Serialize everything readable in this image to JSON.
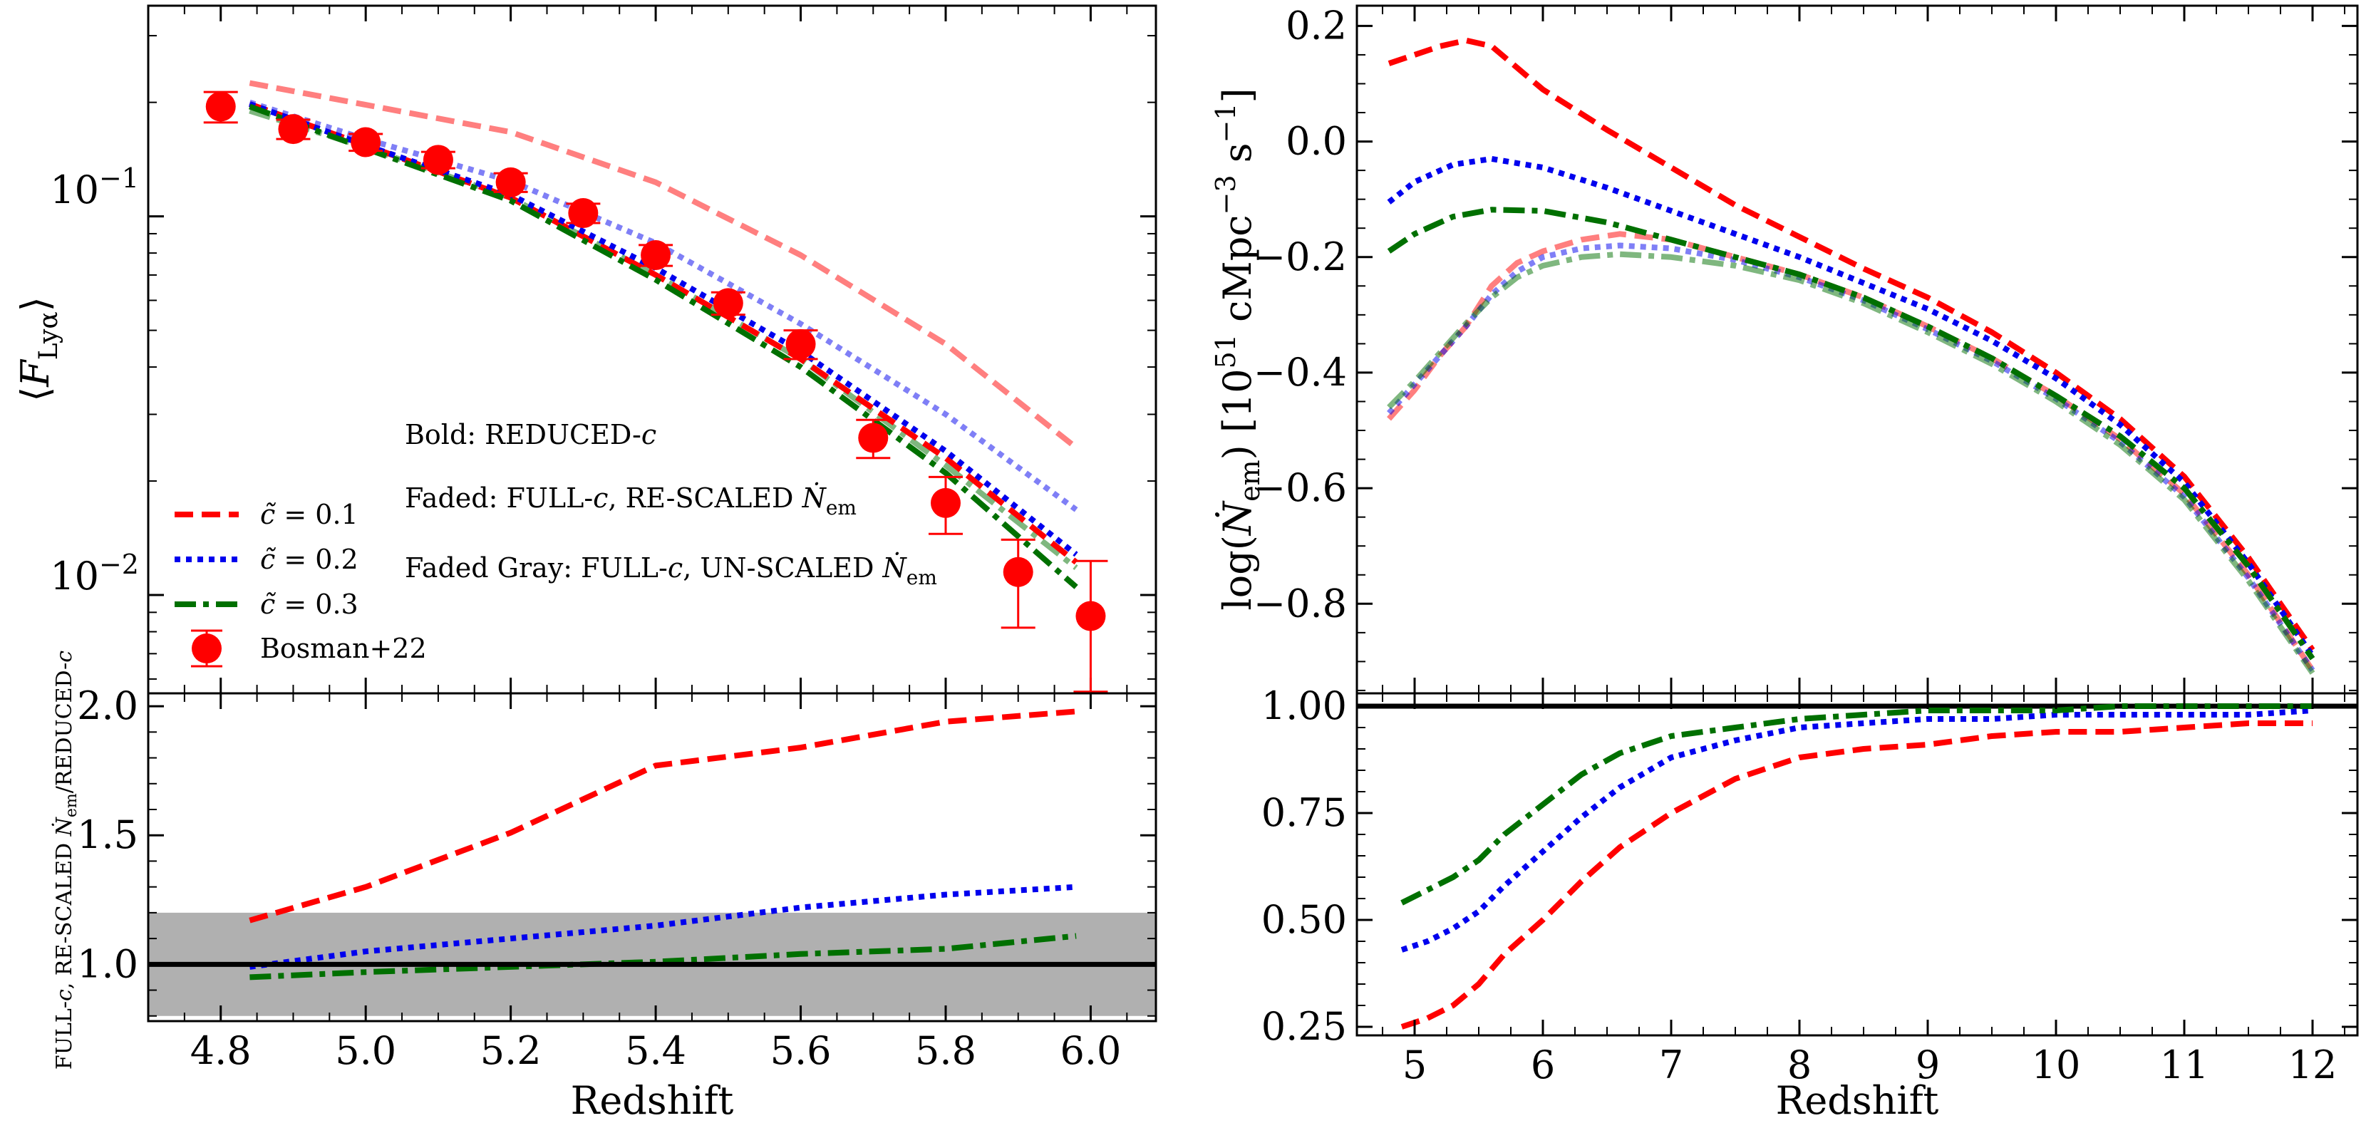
{
  "chart_data": [
    {
      "id": "top-left",
      "type": "line",
      "ylabel": "⟨F_Lyα⟩",
      "yscale": "log",
      "ylim": [
        0.0055,
        0.36
      ],
      "xlim": [
        4.7,
        6.09
      ],
      "y_tick_labels": [
        "10^-1",
        "10^-2"
      ],
      "series": [
        {
          "name": "c̃ = 0.1",
          "style": "dashed",
          "color": "#ff0000",
          "faded": false,
          "x": [
            4.84,
            5.0,
            5.2,
            5.4,
            5.6,
            5.8,
            5.98
          ],
          "y": [
            0.198,
            0.154,
            0.112,
            0.07,
            0.042,
            0.023,
            0.0122
          ]
        },
        {
          "name": "c̃ = 0.2",
          "style": "dotted",
          "color": "#0000ee",
          "faded": false,
          "x": [
            4.84,
            5.0,
            5.2,
            5.4,
            5.6,
            5.8,
            5.98
          ],
          "y": [
            0.198,
            0.154,
            0.114,
            0.073,
            0.044,
            0.024,
            0.0128
          ]
        },
        {
          "name": "c̃ = 0.3",
          "style": "dashdot",
          "color": "#007000",
          "faded": false,
          "x": [
            4.84,
            5.0,
            5.2,
            5.4,
            5.6,
            5.8,
            5.98
          ],
          "y": [
            0.195,
            0.151,
            0.11,
            0.068,
            0.04,
            0.021,
            0.0105
          ]
        },
        {
          "name": "",
          "style": "dashed",
          "color": "#ff0000",
          "faded": true,
          "x": [
            4.84,
            5.0,
            5.2,
            5.4,
            5.6,
            5.8,
            5.98
          ],
          "y": [
            0.225,
            0.197,
            0.167,
            0.123,
            0.079,
            0.046,
            0.0245
          ]
        },
        {
          "name": "",
          "style": "dotted",
          "color": "#0000ee",
          "faded": true,
          "x": [
            4.84,
            5.0,
            5.2,
            5.4,
            5.6,
            5.8,
            5.98
          ],
          "y": [
            0.2,
            0.16,
            0.124,
            0.085,
            0.052,
            0.03,
            0.0168
          ]
        },
        {
          "name": "",
          "style": "dashdot",
          "color": "#007000",
          "faded": true,
          "x": [
            4.84,
            5.0,
            5.2,
            5.4,
            5.6,
            5.8,
            5.98
          ],
          "y": [
            0.19,
            0.152,
            0.112,
            0.07,
            0.042,
            0.022,
            0.0118
          ]
        }
      ],
      "points": {
        "name": "Bosman+22",
        "color": "#ff0000",
        "x": [
          4.8,
          4.9,
          5.0,
          5.1,
          5.2,
          5.3,
          5.4,
          5.5,
          5.6,
          5.7,
          5.8,
          5.9,
          6.0
        ],
        "y": [
          0.195,
          0.17,
          0.157,
          0.141,
          0.123,
          0.102,
          0.079,
          0.059,
          0.046,
          0.026,
          0.0175,
          0.0115,
          0.0088
        ],
        "err_lo": [
          0.018,
          0.01,
          0.008,
          0.007,
          0.007,
          0.006,
          0.005,
          0.004,
          0.004,
          0.003,
          0.003,
          0.0033,
          0.0038
        ],
        "err_hi": [
          0.018,
          0.01,
          0.008,
          0.007,
          0.007,
          0.006,
          0.005,
          0.004,
          0.004,
          0.003,
          0.003,
          0.0025,
          0.0035
        ]
      },
      "annotations": [
        "Bold: REDUCED-c",
        "Faded: FULL-c, RE-SCALED Ṅ_em",
        "Faded Gray: FULL-c, UN-SCALED Ṅ_em"
      ],
      "legend_placement": "lower-left"
    },
    {
      "id": "bottom-left",
      "type": "line",
      "xlabel": "Redshift",
      "ylabel": "FULL-c, RE-SCALED Ṅ_em/REDUCED-c",
      "xlim": [
        4.7,
        6.09
      ],
      "ylim": [
        0.78,
        2.05
      ],
      "x_ticks": [
        4.8,
        5.0,
        5.2,
        5.4,
        5.6,
        5.8,
        6.0
      ],
      "x_tick_labels": [
        "4.8",
        "5.0",
        "5.2",
        "5.4",
        "5.6",
        "5.8",
        "6.0"
      ],
      "y_ticks": [
        1.0,
        1.5,
        2.0
      ],
      "y_tick_labels": [
        "1.0",
        "1.5",
        "2.0"
      ],
      "band": [
        0.8,
        1.2
      ],
      "reference_line": 1.0,
      "series": [
        {
          "name": "c̃ = 0.1",
          "style": "dashed",
          "color": "#ff0000",
          "x": [
            4.84,
            5.0,
            5.2,
            5.3,
            5.4,
            5.6,
            5.8,
            5.98
          ],
          "y": [
            1.17,
            1.3,
            1.51,
            1.64,
            1.77,
            1.84,
            1.94,
            1.98
          ]
        },
        {
          "name": "c̃ = 0.2",
          "style": "dotted",
          "color": "#0000ee",
          "x": [
            4.84,
            5.0,
            5.2,
            5.4,
            5.6,
            5.8,
            5.98
          ],
          "y": [
            0.99,
            1.05,
            1.1,
            1.15,
            1.22,
            1.27,
            1.3
          ]
        },
        {
          "name": "c̃ = 0.3",
          "style": "dashdot",
          "color": "#007000",
          "x": [
            4.84,
            5.0,
            5.2,
            5.4,
            5.6,
            5.8,
            5.98
          ],
          "y": [
            0.95,
            0.97,
            0.99,
            1.01,
            1.04,
            1.06,
            1.11
          ]
        }
      ]
    },
    {
      "id": "top-right",
      "type": "line",
      "ylabel": "log(Ṅ_em) [10^51 cMpc^-3 s^-1]",
      "xlim": [
        4.55,
        12.35
      ],
      "ylim": [
        -0.955,
        0.235
      ],
      "y_ticks": [
        0.2,
        0.0,
        -0.2,
        -0.4,
        -0.6,
        -0.8
      ],
      "y_tick_labels": [
        "0.2",
        "0.0",
        "−0.2",
        "−0.4",
        "−0.6",
        "−0.8"
      ],
      "series": [
        {
          "name": "c̃ = 0.1",
          "style": "dashed",
          "color": "#ff0000",
          "faded": false,
          "x": [
            4.8,
            5.0,
            5.2,
            5.4,
            5.6,
            6.0,
            6.5,
            7.0,
            7.5,
            8.0,
            8.5,
            9.0,
            9.5,
            10.0,
            10.5,
            11.0,
            11.5,
            12.0
          ],
          "y": [
            0.135,
            0.15,
            0.165,
            0.175,
            0.165,
            0.09,
            0.02,
            -0.045,
            -0.11,
            -0.165,
            -0.22,
            -0.27,
            -0.33,
            -0.4,
            -0.48,
            -0.58,
            -0.72,
            -0.88
          ]
        },
        {
          "name": "c̃ = 0.2",
          "style": "dotted",
          "color": "#0000ee",
          "faded": false,
          "x": [
            4.8,
            5.0,
            5.3,
            5.6,
            6.0,
            6.5,
            7.0,
            7.5,
            8.0,
            8.5,
            9.0,
            9.5,
            10.0,
            10.5,
            11.0,
            11.5,
            12.0
          ],
          "y": [
            -0.105,
            -0.07,
            -0.04,
            -0.03,
            -0.045,
            -0.08,
            -0.12,
            -0.16,
            -0.2,
            -0.245,
            -0.29,
            -0.345,
            -0.41,
            -0.49,
            -0.59,
            -0.73,
            -0.89
          ]
        },
        {
          "name": "c̃ = 0.3",
          "style": "dashdot",
          "color": "#007000",
          "faded": false,
          "x": [
            4.8,
            5.0,
            5.3,
            5.6,
            6.0,
            6.5,
            7.0,
            7.5,
            8.0,
            8.5,
            9.0,
            9.5,
            10.0,
            10.5,
            11.0,
            11.5,
            12.0
          ],
          "y": [
            -0.19,
            -0.16,
            -0.13,
            -0.118,
            -0.12,
            -0.14,
            -0.17,
            -0.2,
            -0.23,
            -0.27,
            -0.32,
            -0.375,
            -0.44,
            -0.51,
            -0.6,
            -0.735,
            -0.895
          ]
        },
        {
          "name": "",
          "style": "dashed",
          "color": "#ff0000",
          "faded": true,
          "x": [
            4.8,
            5.0,
            5.2,
            5.4,
            5.6,
            5.8,
            6.0,
            6.3,
            6.6,
            7.0,
            7.5,
            8.0,
            8.5,
            9.0,
            9.5,
            10.0,
            10.5,
            11.0,
            11.5,
            12.0
          ],
          "y": [
            -0.48,
            -0.43,
            -0.37,
            -0.32,
            -0.25,
            -0.21,
            -0.19,
            -0.17,
            -0.16,
            -0.17,
            -0.2,
            -0.23,
            -0.27,
            -0.32,
            -0.375,
            -0.44,
            -0.515,
            -0.61,
            -0.75,
            -0.915
          ]
        },
        {
          "name": "",
          "style": "dotted",
          "color": "#0000ee",
          "faded": true,
          "x": [
            4.8,
            5.0,
            5.2,
            5.4,
            5.6,
            5.8,
            6.0,
            6.3,
            6.6,
            7.0,
            7.5,
            8.0,
            8.5,
            9.0,
            9.5,
            10.0,
            10.5,
            11.0,
            11.5,
            12.0
          ],
          "y": [
            -0.47,
            -0.42,
            -0.37,
            -0.32,
            -0.265,
            -0.225,
            -0.2,
            -0.185,
            -0.18,
            -0.185,
            -0.205,
            -0.235,
            -0.275,
            -0.325,
            -0.38,
            -0.445,
            -0.52,
            -0.615,
            -0.755,
            -0.915
          ]
        },
        {
          "name": "",
          "style": "dashdot",
          "color": "#007000",
          "faded": true,
          "x": [
            4.8,
            5.0,
            5.2,
            5.4,
            5.6,
            5.8,
            6.0,
            6.3,
            6.6,
            7.0,
            7.5,
            8.0,
            8.5,
            9.0,
            9.5,
            10.0,
            10.5,
            11.0,
            11.5,
            12.0
          ],
          "y": [
            -0.46,
            -0.415,
            -0.365,
            -0.315,
            -0.27,
            -0.235,
            -0.215,
            -0.2,
            -0.195,
            -0.2,
            -0.215,
            -0.24,
            -0.28,
            -0.33,
            -0.385,
            -0.45,
            -0.525,
            -0.62,
            -0.76,
            -0.92
          ]
        }
      ]
    },
    {
      "id": "bottom-right",
      "type": "line",
      "xlabel": "Redshift",
      "xlim": [
        4.55,
        12.35
      ],
      "ylim": [
        0.23,
        1.03
      ],
      "x_ticks": [
        5,
        6,
        7,
        8,
        9,
        10,
        11,
        12
      ],
      "x_tick_labels": [
        "5",
        "6",
        "7",
        "8",
        "9",
        "10",
        "11",
        "12"
      ],
      "y_ticks": [
        0.25,
        0.5,
        0.75,
        1.0
      ],
      "y_tick_labels": [
        "0.25",
        "0.50",
        "0.75",
        "1.00"
      ],
      "reference_line": 1.0,
      "series": [
        {
          "name": "c̃ = 0.1",
          "style": "dashed",
          "color": "#ff0000",
          "x": [
            4.9,
            5.1,
            5.3,
            5.5,
            5.7,
            6.0,
            6.3,
            6.6,
            7.0,
            7.5,
            8.0,
            8.5,
            9.0,
            9.5,
            10.0,
            10.5,
            11.0,
            11.5,
            12.0
          ],
          "y": [
            0.25,
            0.27,
            0.3,
            0.35,
            0.42,
            0.5,
            0.59,
            0.67,
            0.75,
            0.83,
            0.88,
            0.9,
            0.91,
            0.93,
            0.94,
            0.94,
            0.95,
            0.96,
            0.96
          ]
        },
        {
          "name": "c̃ = 0.2",
          "style": "dotted",
          "color": "#0000ee",
          "x": [
            4.9,
            5.1,
            5.3,
            5.5,
            5.7,
            6.0,
            6.3,
            6.6,
            7.0,
            7.5,
            8.0,
            8.5,
            9.0,
            9.5,
            10.0,
            10.5,
            11.0,
            11.5,
            12.0
          ],
          "y": [
            0.43,
            0.45,
            0.48,
            0.52,
            0.58,
            0.66,
            0.74,
            0.81,
            0.88,
            0.92,
            0.95,
            0.96,
            0.97,
            0.97,
            0.98,
            0.98,
            0.98,
            0.98,
            0.99
          ]
        },
        {
          "name": "c̃ = 0.3",
          "style": "dashdot",
          "color": "#007000",
          "x": [
            4.9,
            5.1,
            5.3,
            5.5,
            5.7,
            6.0,
            6.3,
            6.6,
            7.0,
            7.5,
            8.0,
            8.5,
            9.0,
            9.5,
            10.0,
            10.5,
            11.0,
            11.5,
            12.0
          ],
          "y": [
            0.54,
            0.57,
            0.6,
            0.64,
            0.7,
            0.77,
            0.84,
            0.89,
            0.93,
            0.95,
            0.97,
            0.98,
            0.99,
            0.99,
            0.99,
            1.0,
            1.0,
            1.0,
            1.0
          ]
        }
      ]
    }
  ],
  "legend": {
    "items": [
      {
        "label": "c̃ = 0.1",
        "style": "dashed",
        "color": "#ff0000"
      },
      {
        "label": "c̃ = 0.2",
        "style": "dotted",
        "color": "#0000ee"
      },
      {
        "label": "c̃ = 0.3",
        "style": "dashdot",
        "color": "#007000"
      },
      {
        "label": "Bosman+22",
        "style": "marker",
        "color": "#ff0000"
      }
    ]
  }
}
